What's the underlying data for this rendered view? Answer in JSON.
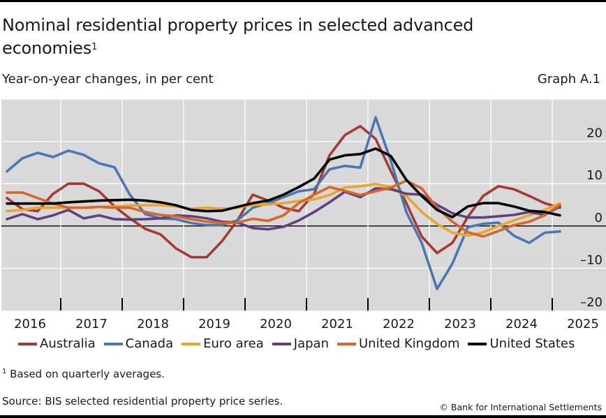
{
  "header": {
    "title": "Nominal residential property prices in selected advanced economies",
    "title_footnote_marker": "1",
    "subtitle": "Year-on-year changes, in per cent",
    "graph_id": "Graph A.1"
  },
  "footer": {
    "footnote_marker": "1",
    "footnote": "Based on quarterly averages.",
    "source": "Source: BIS selected residential property price series.",
    "copyright": "© Bank for International Settlements"
  },
  "chart_data": {
    "type": "line",
    "title": "Nominal residential property prices in selected advanced economies",
    "subtitle": "Year-on-year changes, in per cent",
    "xlabel": "",
    "ylabel": "",
    "frequency": "quarterly",
    "x_start": "2016-Q1",
    "x_end": "2025-Q1",
    "x_tick_labels": [
      "2016",
      "2017",
      "2018",
      "2019",
      "2020",
      "2021",
      "2022",
      "2023",
      "2024",
      "2025"
    ],
    "y_ticks": [
      -20,
      -10,
      0,
      10,
      20
    ],
    "y_tick_labels": [
      "–20",
      "–10",
      "0",
      "10",
      "20"
    ],
    "ylim": [
      -20,
      30
    ],
    "y_axis_side": "right",
    "grid": true,
    "legend_position": "bottom",
    "series": [
      {
        "name": "Australia",
        "color": "#A43A36",
        "values": [
          6.6,
          4,
          3.5,
          7.6,
          10,
          10,
          8.2,
          4.6,
          1.8,
          -0.7,
          -2,
          -5.3,
          -7.4,
          -7.4,
          -3.6,
          1.3,
          7.4,
          6,
          4.3,
          3.5,
          7.6,
          16.7,
          21.5,
          23.6,
          20.6,
          12.9,
          5.4,
          -2.5,
          -6.4,
          -4,
          2.1,
          7.1,
          9.4,
          8.7,
          7.1,
          5.4,
          4.3
        ]
      },
      {
        "name": "Canada",
        "color": "#4A77B4",
        "values": [
          12.9,
          16,
          17.3,
          16.3,
          17.8,
          16.8,
          14.8,
          13.9,
          7.4,
          2.8,
          1.8,
          1.6,
          0.7,
          0.2,
          0.2,
          1.3,
          4.3,
          5.4,
          6.8,
          8.2,
          8.7,
          13.4,
          14.2,
          13.8,
          25.7,
          15.3,
          3.3,
          -4,
          -14.9,
          -8.9,
          -0.3,
          0.5,
          0.8,
          -2.3,
          -4,
          -1.6,
          -1.3
        ]
      },
      {
        "name": "Euro area",
        "color": "#E9A62C",
        "values": [
          3.5,
          3.8,
          4.3,
          4.3,
          4.3,
          4.3,
          4.5,
          4.6,
          4.8,
          4.9,
          4.9,
          4.6,
          4.1,
          4.3,
          4.1,
          4.3,
          5,
          5.1,
          5.4,
          5.9,
          6.3,
          7.3,
          9.1,
          9.4,
          9.9,
          9.2,
          7.1,
          3.3,
          0.5,
          -1.6,
          -2.3,
          -1.5,
          0,
          1.3,
          2.5,
          3.8,
          5.3
        ]
      },
      {
        "name": "Japan",
        "color": "#62407E",
        "values": [
          1.6,
          2.8,
          1.6,
          2.5,
          3.8,
          1.8,
          2.5,
          1.6,
          1.5,
          1.6,
          1.8,
          2.5,
          2.3,
          1.8,
          1,
          0.8,
          -0.5,
          -0.8,
          -0.2,
          1.3,
          3.3,
          5.6,
          8.1,
          6.8,
          8.9,
          8.7,
          7.6,
          7.4,
          5,
          3,
          2,
          2,
          2.3,
          2.6,
          3.3,
          2.6,
          4.6
        ]
      },
      {
        "name": "United Kingdom",
        "color": "#D8652A",
        "values": [
          7.9,
          7.9,
          6.6,
          5.3,
          4.3,
          4.3,
          4.5,
          4.3,
          4.3,
          3.3,
          2.6,
          2.3,
          1.6,
          1,
          0.7,
          0.8,
          1.7,
          1.2,
          2.5,
          5.4,
          7.4,
          9.2,
          8.3,
          7.3,
          8.2,
          9.1,
          10.7,
          8.9,
          4.3,
          1,
          -1.5,
          -2.5,
          -1.2,
          0.2,
          1,
          2.5,
          5
        ]
      },
      {
        "name": "United States",
        "color": "#000000",
        "values": [
          5.3,
          5.3,
          5.3,
          5.3,
          5.6,
          5.8,
          6,
          6.1,
          6.2,
          6,
          5.6,
          4.9,
          3.8,
          3.5,
          3.6,
          4.5,
          5.4,
          6,
          7.4,
          9.2,
          11.2,
          15.7,
          16.7,
          17,
          18.3,
          16.5,
          10.9,
          7.1,
          3.8,
          2.1,
          4.6,
          5.4,
          5.4,
          4.6,
          3.6,
          3.3,
          2.5
        ]
      }
    ]
  }
}
